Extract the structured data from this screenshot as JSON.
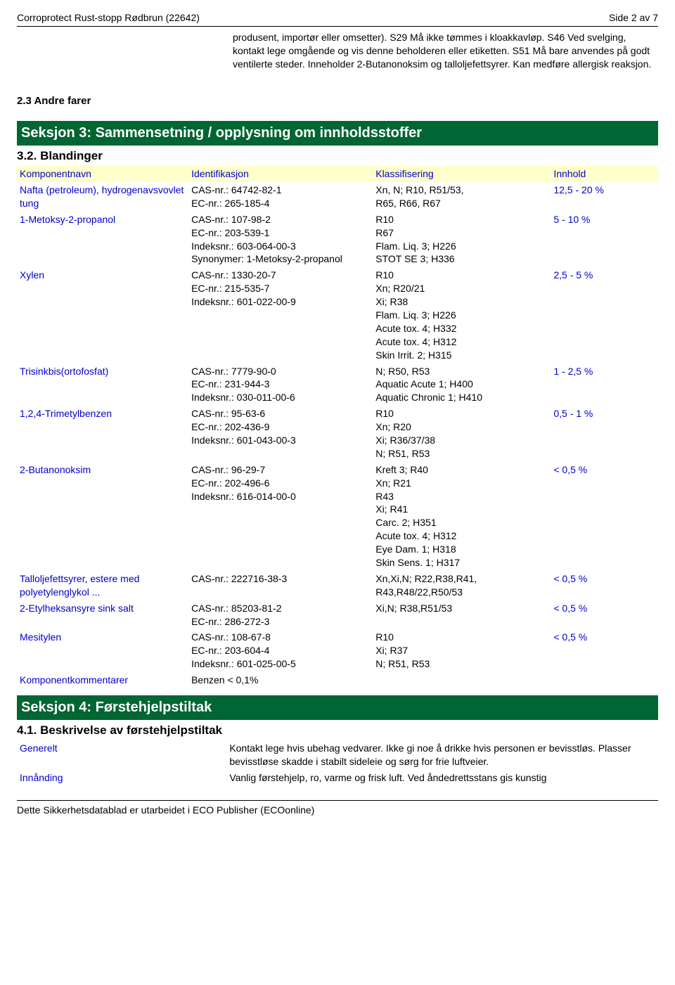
{
  "header": {
    "title": "Corroprotect Rust-stopp Rødbrun (22642)",
    "page": "Side 2 av 7"
  },
  "intro": {
    "other_hazards_label": "2.3 Andre farer",
    "body": "produsent, importør eller omsetter). S29 Må ikke tømmes i kloakkavløp. S46 Ved svelging, kontakt lege omgående og vis denne beholderen eller etiketten. S51 Må bare anvendes på godt ventilerte steder. Inneholder 2-Butanonoksim og talloljefettsyrer. Kan medføre allergisk reaksjon."
  },
  "section3": {
    "title": "Seksjon 3: Sammensetning / opplysning om innholdsstoffer",
    "subtitle": "3.2. Blandinger",
    "cols": {
      "name": "Komponentnavn",
      "ident": "Identifikasjon",
      "class": "Klassifisering",
      "inn": "Innhold"
    },
    "rows": [
      {
        "name": "Nafta (petroleum), hydrogenavsvovlet tung",
        "ident": [
          "CAS-nr.: 64742-82-1",
          "EC-nr.: 265-185-4"
        ],
        "class": [
          "Xn, N; R10, R51/53,",
          "R65, R66, R67"
        ],
        "inn": "12,5 - 20 %"
      },
      {
        "name": "1-Metoksy-2-propanol",
        "ident": [
          "CAS-nr.: 107-98-2",
          "EC-nr.: 203-539-1",
          "Indeksnr.: 603-064-00-3",
          "Synonymer: 1-Metoksy-2-propanol"
        ],
        "class": [
          "R10",
          "R67",
          "Flam. Liq. 3; H226",
          "STOT SE 3; H336"
        ],
        "inn": "5 - 10 %"
      },
      {
        "name": "Xylen",
        "ident": [
          "CAS-nr.: 1330-20-7",
          "EC-nr.: 215-535-7",
          "Indeksnr.: 601-022-00-9"
        ],
        "class": [
          "R10",
          "Xn; R20/21",
          "Xi; R38",
          "Flam. Liq. 3; H226",
          "Acute tox. 4; H332",
          "Acute tox. 4; H312",
          "Skin Irrit. 2; H315"
        ],
        "inn": "2,5 - 5 %"
      },
      {
        "name": "Trisinkbis(ortofosfat)",
        "ident": [
          "CAS-nr.: 7779-90-0",
          "EC-nr.: 231-944-3",
          "Indeksnr.: 030-011-00-6"
        ],
        "class": [
          "N; R50, R53",
          "Aquatic Acute 1; H400",
          "Aquatic Chronic 1; H410"
        ],
        "inn": "1 - 2,5 %"
      },
      {
        "name": "1,2,4-Trimetylbenzen",
        "ident": [
          "CAS-nr.: 95-63-6",
          "EC-nr.: 202-436-9",
          "Indeksnr.: 601-043-00-3"
        ],
        "class": [
          "R10",
          "Xn; R20",
          "Xi; R36/37/38",
          "N; R51, R53"
        ],
        "inn": "0,5 - 1 %"
      },
      {
        "name": "2-Butanonoksim",
        "ident": [
          "CAS-nr.: 96-29-7",
          "EC-nr.: 202-496-6",
          "Indeksnr.: 616-014-00-0"
        ],
        "class": [
          "Kreft 3; R40",
          "Xn; R21",
          "R43",
          "Xi; R41",
          "Carc. 2; H351",
          "Acute tox. 4; H312",
          "Eye Dam. 1; H318",
          "Skin Sens. 1; H317"
        ],
        "inn": "< 0,5 %"
      },
      {
        "name": "Talloljefettsyrer, estere med polyetylenglykol ...",
        "ident": [
          "CAS-nr.: 222716-38-3"
        ],
        "class": [
          "Xn,Xi,N; R22,R38,R41,",
          "R43,R48/22,R50/53"
        ],
        "inn": "< 0,5 %"
      },
      {
        "name": "2-Etylheksansyre sink salt",
        "ident": [
          "CAS-nr.: 85203-81-2",
          "EC-nr.: 286-272-3"
        ],
        "class": [
          "Xi,N; R38,R51/53"
        ],
        "inn": "< 0,5 %"
      },
      {
        "name": "Mesitylen",
        "ident": [
          "CAS-nr.: 108-67-8",
          "EC-nr.: 203-604-4",
          "Indeksnr.: 601-025-00-5"
        ],
        "class": [
          "R10",
          "Xi; R37",
          "N; R51, R53"
        ],
        "inn": "< 0,5 %"
      }
    ],
    "comment_label": "Komponentkommentarer",
    "comment_value": "Benzen < 0,1%"
  },
  "section4": {
    "title": "Seksjon 4: Førstehjelpstiltak",
    "subtitle": "4.1. Beskrivelse av førstehjelpstiltak",
    "rows": [
      {
        "label": "Generelt",
        "value": "Kontakt lege hvis ubehag vedvarer. Ikke gi noe å drikke hvis personen er bevisstløs. Plasser bevisstløse skadde i stabilt sideleie og sørg for frie luftveier."
      },
      {
        "label": "Innånding",
        "value": "Vanlig førstehjelp, ro, varme og frisk luft. Ved åndedrettsstans gis kunstig"
      }
    ]
  },
  "footer": "Dette Sikkerhetsdatablad er utarbeidet i ECO Publisher (ECOonline)"
}
